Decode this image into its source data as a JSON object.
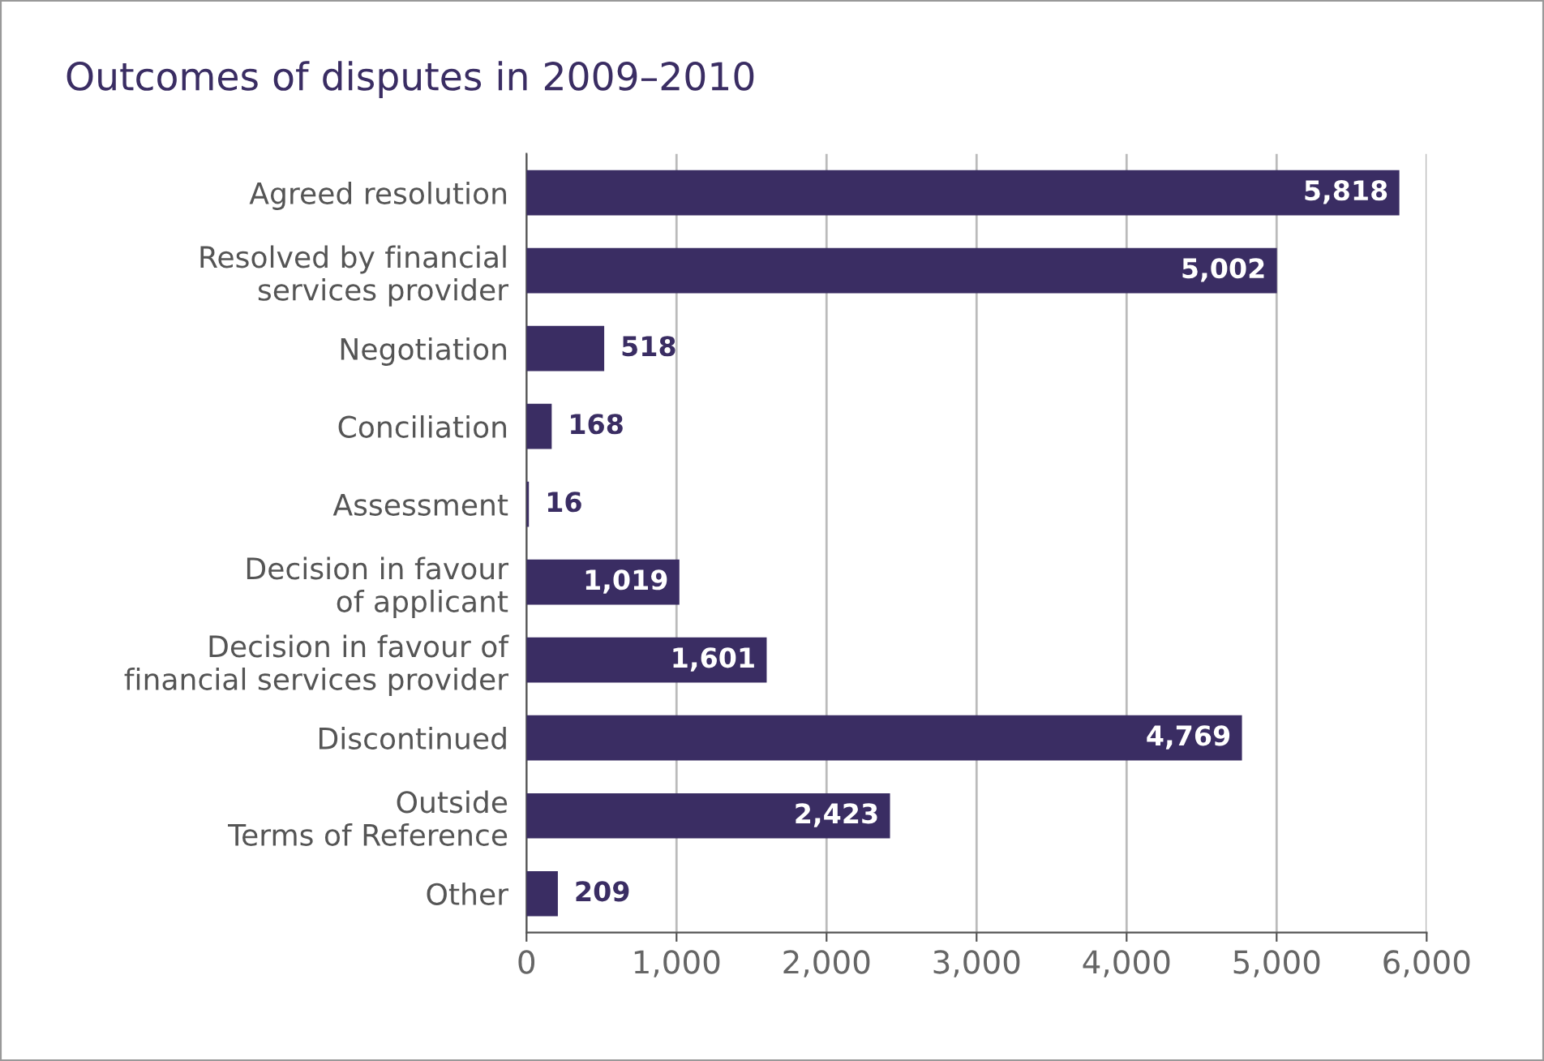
{
  "chart_data": {
    "type": "bar",
    "orientation": "horizontal",
    "title": "Outcomes of disputes in 2009–2010",
    "categories": [
      "Agreed resolution",
      "Resolved by financial\nservices provider",
      "Negotiation",
      "Conciliation",
      "Assessment",
      "Decision in favour\nof applicant",
      "Decision in favour of\nfinancial services provider",
      "Discontinued",
      "Outside\nTerms of Reference",
      "Other"
    ],
    "values": [
      5818,
      5002,
      518,
      168,
      16,
      1019,
      1601,
      4769,
      2423,
      209
    ],
    "value_labels": [
      "5,818",
      "5,002",
      "518",
      "168",
      "16",
      "1,019",
      "1,601",
      "4,769",
      "2,423",
      "209"
    ],
    "color": "#3a2d63",
    "xlim": [
      0,
      6000
    ],
    "xticks": [
      0,
      {
        "value": 1000,
        "label": "1,000"
      },
      {
        "value": 2000,
        "label": "2,000"
      },
      {
        "value": 3000,
        "label": "3,000"
      },
      {
        "value": 4000,
        "label": "4,000"
      },
      {
        "value": 5000,
        "label": "5,000"
      },
      {
        "value": 6000,
        "label": "6,000"
      }
    ],
    "grid": "x",
    "legend": false
  }
}
